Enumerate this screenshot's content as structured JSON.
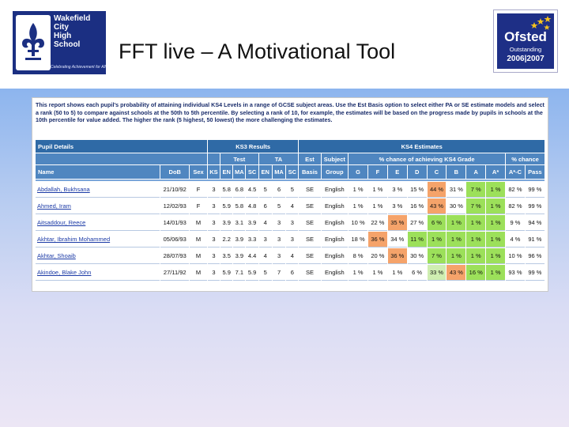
{
  "header": {
    "title": "FFT live – A Motivational Tool",
    "school_logo": {
      "name_lines": [
        "Wakefield",
        "City",
        "High",
        "School"
      ],
      "motto": "Celebrating Achievement for All",
      "icon": "fleur-de-lis-icon"
    },
    "ofsted_badge": {
      "name": "Ofsted",
      "rating": "Outstanding",
      "years": "2006|2007",
      "icon": "stars-icon"
    }
  },
  "report": {
    "intro": "This report shows each pupil's probability of attaining individual KS4 Levels in a range of GCSE subject areas. Use the Est Basis option to select either PA or SE estimate models and select a rank (50 to 5) to compare against schools at the 50th to 5th percentile. By selecting a rank of 10, for example, the estimates will be based on the progress made by pupils in schools at the 10th percentile for value added. The higher the rank (5 highest, 50 lowest) the more challenging the estimates.",
    "sections": {
      "pupil_details": "Pupil Details",
      "ks3_results": "KS3 Results",
      "ks4_estimates": "KS4 Estimates"
    },
    "subheaders": {
      "test": "Test",
      "ta": "TA",
      "est": "Est",
      "subject": "Subject",
      "chance_grade": "% chance of achieving KS4 Grade",
      "chance": "% chance"
    },
    "columns": {
      "name": "Name",
      "dob": "DoB",
      "sex": "Sex",
      "ks": "KS",
      "en": "EN",
      "ma": "MA",
      "sc": "SC",
      "en2": "EN",
      "ma2": "MA",
      "sc2": "SC",
      "basis": "Basis",
      "group": "Group",
      "g": "G",
      "f": "F",
      "e": "E",
      "d": "D",
      "c": "C",
      "b": "B",
      "a": "A",
      "astar": "A*",
      "astar_c": "A*-C",
      "pass": "Pass"
    },
    "rows": [
      {
        "name": "Abdallah, Bukhsana",
        "dob": "21/10/92",
        "sex": "F",
        "ks": "3",
        "en": "5.8",
        "ma": "6.8",
        "sc": "4.5",
        "ta_en": "5",
        "ta_ma": "6",
        "ta_sc": "5",
        "basis": "SE",
        "group": "English",
        "g": "1 %",
        "f": "1 %",
        "e": "3 %",
        "d": "15 %",
        "c": "44 %",
        "b": "31 %",
        "a": "7 %",
        "astar": "1 %",
        "astar_c": "82 %",
        "pass": "99 %"
      },
      {
        "name": "Ahmed, Iram",
        "dob": "12/02/93",
        "sex": "F",
        "ks": "3",
        "en": "5.9",
        "ma": "5.8",
        "sc": "4.8",
        "ta_en": "6",
        "ta_ma": "5",
        "ta_sc": "4",
        "basis": "SE",
        "group": "English",
        "g": "1 %",
        "f": "1 %",
        "e": "3 %",
        "d": "16 %",
        "c": "43 %",
        "b": "30 %",
        "a": "7 %",
        "astar": "1 %",
        "astar_c": "82 %",
        "pass": "99 %"
      },
      {
        "name": "Aitsaddour, Reece",
        "dob": "14/01/93",
        "sex": "M",
        "ks": "3",
        "en": "3.9",
        "ma": "3.1",
        "sc": "3.9",
        "ta_en": "4",
        "ta_ma": "3",
        "ta_sc": "3",
        "basis": "SE",
        "group": "English",
        "g": "10 %",
        "f": "22 %",
        "e": "35 %",
        "d": "27 %",
        "c": "6 %",
        "b": "1 %",
        "a": "1 %",
        "astar": "1 %",
        "astar_c": "9 %",
        "pass": "94 %"
      },
      {
        "name": "Akhtar, Ibrahim Mohammed",
        "dob": "05/06/93",
        "sex": "M",
        "ks": "3",
        "en": "2.2",
        "ma": "3.9",
        "sc": "3.3",
        "ta_en": "3",
        "ta_ma": "3",
        "ta_sc": "3",
        "basis": "SE",
        "group": "English",
        "g": "18 %",
        "f": "36 %",
        "e": "34 %",
        "d": "11 %",
        "c": "1 %",
        "b": "1 %",
        "a": "1 %",
        "astar": "1 %",
        "astar_c": "4 %",
        "pass": "91 %"
      },
      {
        "name": "Akhtar, Shoaib",
        "dob": "28/07/93",
        "sex": "M",
        "ks": "3",
        "en": "3.5",
        "ma": "3.9",
        "sc": "4.4",
        "ta_en": "4",
        "ta_ma": "3",
        "ta_sc": "4",
        "basis": "SE",
        "group": "English",
        "g": "8 %",
        "f": "20 %",
        "e": "36 %",
        "d": "30 %",
        "c": "7 %",
        "b": "1 %",
        "a": "1 %",
        "astar": "1 %",
        "astar_c": "10 %",
        "pass": "96 %"
      },
      {
        "name": "Akindoe, Blake John",
        "dob": "27/11/92",
        "sex": "M",
        "ks": "3",
        "en": "5.9",
        "ma": "7.1",
        "sc": "5.9",
        "ta_en": "5",
        "ta_ma": "7",
        "ta_sc": "6",
        "basis": "SE",
        "group": "English",
        "g": "1 %",
        "f": "1 %",
        "e": "1 %",
        "d": "6 %",
        "c": "33 %",
        "b": "43 %",
        "a": "16 %",
        "astar": "1 %",
        "astar_c": "93 %",
        "pass": "99 %"
      }
    ],
    "highlight_colors": {
      "orange": "#f5a36a",
      "green": "#9ce05a",
      "light_green": "#cfeeb1",
      "header_blue": "#2f6aa6"
    }
  }
}
